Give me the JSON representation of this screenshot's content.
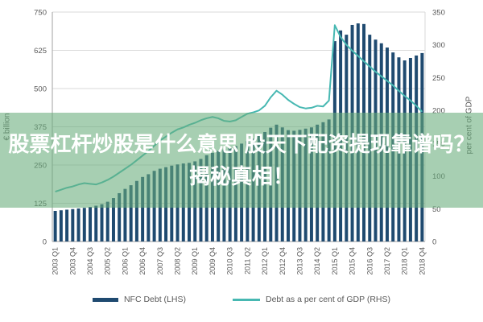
{
  "overlay": {
    "line1": "股票杠杆炒股是什么意思 股天下配资提现靠谱吗？",
    "line2": "揭秘真相！",
    "band_color": "rgba(104,172,122,0.58)",
    "text_color": "#ffffff"
  },
  "chart_data": {
    "type": "bar",
    "title": "",
    "categories": [
      "2003 Q1",
      "2003 Q2",
      "2003 Q3",
      "2003 Q4",
      "2004 Q1",
      "2004 Q2",
      "2004 Q3",
      "2004 Q4",
      "2005 Q1",
      "2005 Q2",
      "2005 Q3",
      "2005 Q4",
      "2006 Q1",
      "2006 Q2",
      "2006 Q3",
      "2006 Q4",
      "2007 Q1",
      "2007 Q2",
      "2007 Q3",
      "2007 Q4",
      "2008 Q1",
      "2008 Q2",
      "2008 Q3",
      "2008 Q4",
      "2009 Q1",
      "2009 Q2",
      "2009 Q3",
      "2009 Q4",
      "2010 Q1",
      "2010 Q2",
      "2010 Q3",
      "2010 Q4",
      "2011 Q1",
      "2011 Q2",
      "2011 Q3",
      "2011 Q4",
      "2012 Q1",
      "2012 Q2",
      "2012 Q3",
      "2012 Q4",
      "2013 Q1",
      "2013 Q2",
      "2013 Q3",
      "2013 Q4",
      "2014 Q1",
      "2014 Q2",
      "2014 Q3",
      "2014 Q4",
      "2015 Q1",
      "2015 Q2",
      "2015 Q3",
      "2015 Q4",
      "2016 Q1",
      "2016 Q2",
      "2016 Q3",
      "2016 Q4",
      "2017 Q1",
      "2017 Q2",
      "2017 Q3",
      "2017 Q4",
      "2018 Q1",
      "2018 Q2",
      "2018 Q3",
      "2018 Q4"
    ],
    "x_label_every": 3,
    "series": [
      {
        "name": "NFC Debt (LHS)",
        "type": "bar",
        "axis": "left",
        "color": "#1f4a70",
        "values": [
          100,
          102,
          104,
          106,
          108,
          110,
          113,
          117,
          122,
          130,
          142,
          158,
          172,
          184,
          198,
          211,
          220,
          231,
          238,
          243,
          248,
          252,
          255,
          257,
          262,
          270,
          282,
          290,
          296,
          301,
          306,
          312,
          320,
          328,
          336,
          346,
          358,
          372,
          382,
          373,
          364,
          362,
          365,
          369,
          373,
          382,
          390,
          399,
          655,
          690,
          676,
          708,
          713,
          711,
          676,
          660,
          648,
          634,
          618,
          602,
          592,
          600,
          608,
          616
        ]
      },
      {
        "name": "Debt as a per cent of GDP (RHS)",
        "type": "line",
        "axis": "right",
        "color": "#47b8b2",
        "values": [
          76,
          79,
          82,
          84,
          87,
          89,
          88,
          87,
          90,
          94,
          99,
          105,
          111,
          117,
          124,
          131,
          138,
          146,
          154,
          160,
          166,
          171,
          174,
          178,
          181,
          185,
          188,
          190,
          188,
          184,
          183,
          185,
          190,
          195,
          197,
          200,
          207,
          220,
          230,
          224,
          216,
          210,
          205,
          203,
          204,
          207,
          206,
          215,
          330,
          312,
          300,
          291,
          283,
          275,
          267,
          259,
          252,
          245,
          238,
          230,
          222,
          215,
          207,
          198
        ]
      }
    ],
    "left_axis": {
      "title": "€ billion",
      "min": 0,
      "max": 750,
      "ticks": [
        0,
        125,
        250,
        375,
        500,
        625,
        750
      ]
    },
    "right_axis": {
      "title": "per cent of GDP",
      "min": 0,
      "max": 350,
      "ticks": [
        0,
        50,
        100,
        150,
        200,
        250,
        300,
        350
      ]
    },
    "legend": [
      "NFC Debt (LHS)",
      "Debt as a per cent of GDP (RHS)"
    ],
    "legend_position": "bottom",
    "grid": true,
    "colors": {
      "grid": "#d9d9d9",
      "axis_line": "#b0b0b0",
      "tick_text": "#595959"
    }
  }
}
